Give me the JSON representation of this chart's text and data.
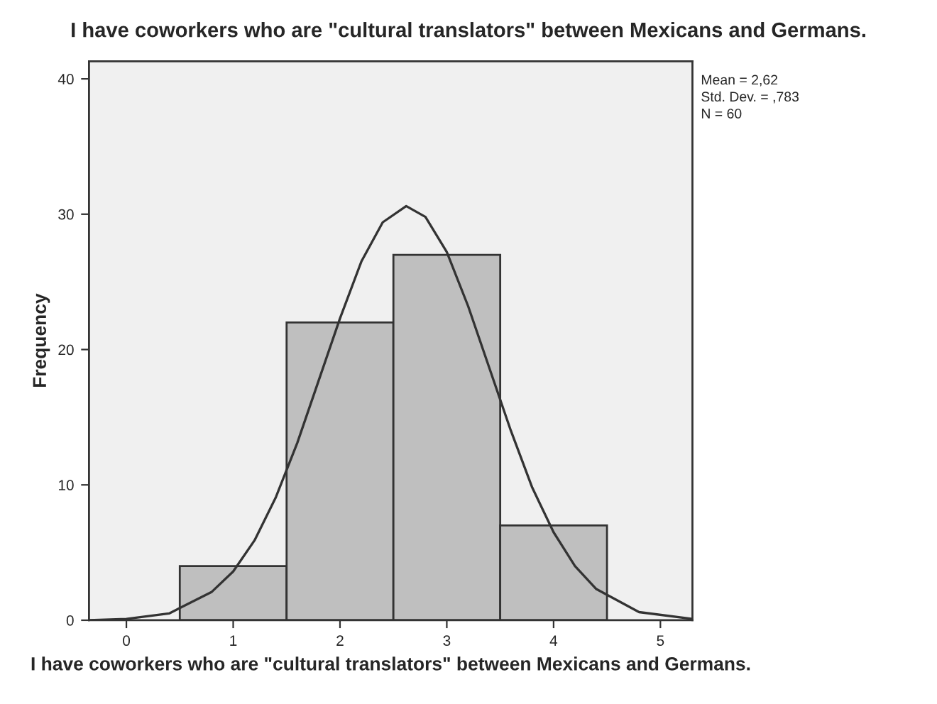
{
  "chart_data": {
    "type": "histogram",
    "title": "I have coworkers who are \"cultural translators\" between Mexicans and Germans.",
    "xlabel": "I have coworkers who are \"cultural translators\" between Mexicans and Germans.",
    "ylabel": "Frequency",
    "bins": [
      0.5,
      1.5,
      2.5,
      3.5,
      4.5
    ],
    "values": [
      4,
      22,
      27,
      7
    ],
    "color": "#bfbfbf",
    "series": [
      {
        "type": "line",
        "color": "#333333",
        "x": [
          -0.35,
          0,
          0.4,
          0.8,
          1.0,
          1.2,
          1.4,
          1.6,
          1.8,
          2.0,
          2.2,
          2.4,
          2.62,
          2.8,
          3.0,
          3.2,
          3.4,
          3.6,
          3.8,
          4.0,
          4.2,
          4.4,
          4.8,
          5.3
        ],
        "values": [
          0.0,
          0.1,
          0.5,
          2.1,
          3.6,
          5.9,
          9.1,
          13.1,
          17.7,
          22.3,
          26.5,
          29.4,
          30.6,
          29.8,
          27.2,
          23.2,
          18.6,
          14.0,
          9.8,
          6.5,
          4.0,
          2.3,
          0.6,
          0.1
        ]
      }
    ],
    "annotations": [
      "Mean = 2,62",
      "Std. Dev. = ,783",
      "N = 60"
    ],
    "xlim": [
      -0.35,
      5.3
    ],
    "xticks": [
      0,
      1,
      2,
      3,
      4,
      5
    ],
    "ylim": [
      0,
      41.3
    ],
    "yticks": [
      0,
      10,
      20,
      30,
      40
    ],
    "grid": false,
    "legend": false
  }
}
